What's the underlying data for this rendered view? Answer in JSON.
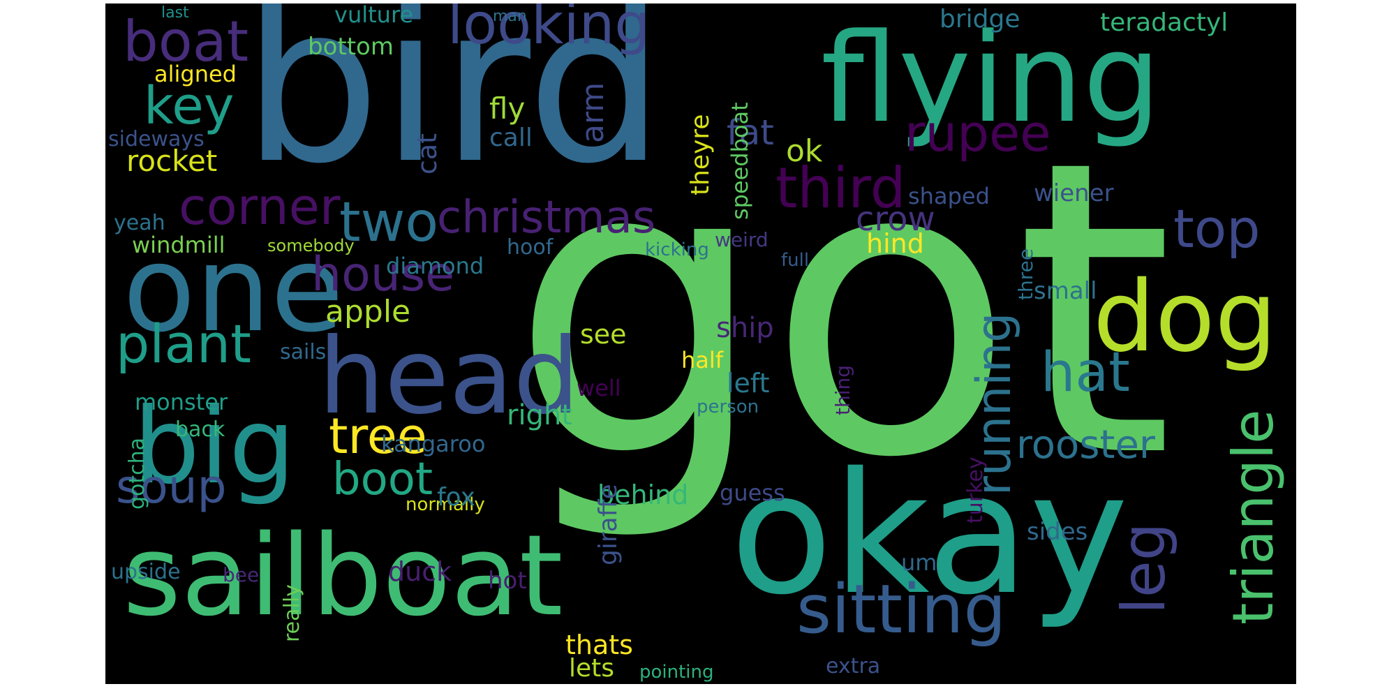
{
  "background": "#000000",
  "palette": [
    "#440154",
    "#472d7b",
    "#3b528b",
    "#2c728e",
    "#21918c",
    "#28ae80",
    "#5ec962",
    "#addc30",
    "#fde725"
  ],
  "words": [
    {
      "text": "got",
      "color": "#5ec962"
    },
    {
      "text": "bird",
      "color": "#31688e"
    },
    {
      "text": "okay",
      "color": "#1f9e89"
    },
    {
      "text": "flying",
      "color": "#26a784"
    },
    {
      "text": "sailboat",
      "color": "#3fbc73"
    },
    {
      "text": "one",
      "color": "#2c728e"
    },
    {
      "text": "head",
      "color": "#3b528b"
    },
    {
      "text": "big",
      "color": "#21908d"
    },
    {
      "text": "dog",
      "color": "#b5de2b"
    },
    {
      "text": "sitting",
      "color": "#365c8d"
    },
    {
      "text": "triangle",
      "color": "#4ac16d"
    },
    {
      "text": "corner",
      "color": "#471063"
    },
    {
      "text": "third",
      "color": "#440154"
    },
    {
      "text": "christmas",
      "color": "#482173"
    },
    {
      "text": "house",
      "color": "#482475"
    },
    {
      "text": "two",
      "color": "#2c728e"
    },
    {
      "text": "boat",
      "color": "#472d7b"
    },
    {
      "text": "rupee",
      "color": "#440154"
    },
    {
      "text": "top",
      "color": "#3e4989"
    },
    {
      "text": "hat",
      "color": "#2a788e"
    },
    {
      "text": "leg",
      "color": "#414487"
    },
    {
      "text": "running",
      "color": "#2c728e"
    },
    {
      "text": "plant",
      "color": "#1f9e89"
    },
    {
      "text": "looking",
      "color": "#3e4a89"
    },
    {
      "text": "key",
      "color": "#1f9e89"
    },
    {
      "text": "boot",
      "color": "#22a884"
    },
    {
      "text": "tree",
      "color": "#fde725"
    },
    {
      "text": "soup",
      "color": "#3b528b"
    },
    {
      "text": "rooster",
      "color": "#2c728e"
    },
    {
      "text": "crow",
      "color": "#46337e"
    },
    {
      "text": "fat",
      "color": "#3e4a89"
    },
    {
      "text": "ok",
      "color": "#addc30"
    },
    {
      "text": "apple",
      "color": "#addc30"
    },
    {
      "text": "rocket",
      "color": "#d8e219"
    },
    {
      "text": "cat",
      "color": "#3b528b"
    },
    {
      "text": "fly",
      "color": "#a0da39"
    },
    {
      "text": "call",
      "color": "#31688e"
    },
    {
      "text": "arm",
      "color": "#3e4a89"
    },
    {
      "text": "theyre",
      "color": "#d8e219"
    },
    {
      "text": "speedboat",
      "color": "#5ec962"
    },
    {
      "text": "bridge",
      "color": "#2a788e"
    },
    {
      "text": "teradactyl",
      "color": "#35b779"
    },
    {
      "text": "vulture",
      "color": "#21918c"
    },
    {
      "text": "bottom",
      "color": "#5ec962"
    },
    {
      "text": "aligned",
      "color": "#fde725"
    },
    {
      "text": "sideways",
      "color": "#3b528b"
    },
    {
      "text": "yeah",
      "color": "#2c728e"
    },
    {
      "text": "windmill",
      "color": "#7ad151"
    },
    {
      "text": "somebody",
      "color": "#a0da39"
    },
    {
      "text": "diamond",
      "color": "#2a788e"
    },
    {
      "text": "hoof",
      "color": "#31688e"
    },
    {
      "text": "kicking",
      "color": "#2c728e"
    },
    {
      "text": "weird",
      "color": "#443983"
    },
    {
      "text": "hind",
      "color": "#fde725"
    },
    {
      "text": "full",
      "color": "#365c8d"
    },
    {
      "text": "shaped",
      "color": "#3b528b"
    },
    {
      "text": "wiener",
      "color": "#3b528b"
    },
    {
      "text": "small",
      "color": "#2c728e"
    },
    {
      "text": "three",
      "color": "#2c728e"
    },
    {
      "text": "ship",
      "color": "#482878"
    },
    {
      "text": "see",
      "color": "#b5de2b"
    },
    {
      "text": "half",
      "color": "#fde725"
    },
    {
      "text": "left",
      "color": "#2a788e"
    },
    {
      "text": "sails",
      "color": "#31688e"
    },
    {
      "text": "monster",
      "color": "#1f9e89"
    },
    {
      "text": "well",
      "color": "#440154"
    },
    {
      "text": "right",
      "color": "#35b779"
    },
    {
      "text": "person",
      "color": "#2c728e"
    },
    {
      "text": "thing",
      "color": "#482173"
    },
    {
      "text": "back",
      "color": "#35b779"
    },
    {
      "text": "kangaroo",
      "color": "#31688e"
    },
    {
      "text": "gotcha",
      "color": "#2db27d"
    },
    {
      "text": "normally",
      "color": "#d8e219"
    },
    {
      "text": "fox",
      "color": "#2a788e"
    },
    {
      "text": "behind",
      "color": "#35b779"
    },
    {
      "text": "giraffe",
      "color": "#3b528b"
    },
    {
      "text": "guess",
      "color": "#3e4a89"
    },
    {
      "text": "turkey",
      "color": "#471063"
    },
    {
      "text": "upside",
      "color": "#2c728e"
    },
    {
      "text": "bee",
      "color": "#482878"
    },
    {
      "text": "really",
      "color": "#6ece58"
    },
    {
      "text": "duck",
      "color": "#481f70"
    },
    {
      "text": "hot",
      "color": "#481f70"
    },
    {
      "text": "sides",
      "color": "#31688e"
    },
    {
      "text": "um",
      "color": "#31688e"
    },
    {
      "text": "thats",
      "color": "#fde725"
    },
    {
      "text": "lets",
      "color": "#b5de2b"
    },
    {
      "text": "pointing",
      "color": "#2db27d"
    },
    {
      "text": "extra",
      "color": "#3b528b"
    },
    {
      "text": "last",
      "color": "#21918c"
    },
    {
      "text": "man",
      "color": "#2c728e"
    }
  ]
}
